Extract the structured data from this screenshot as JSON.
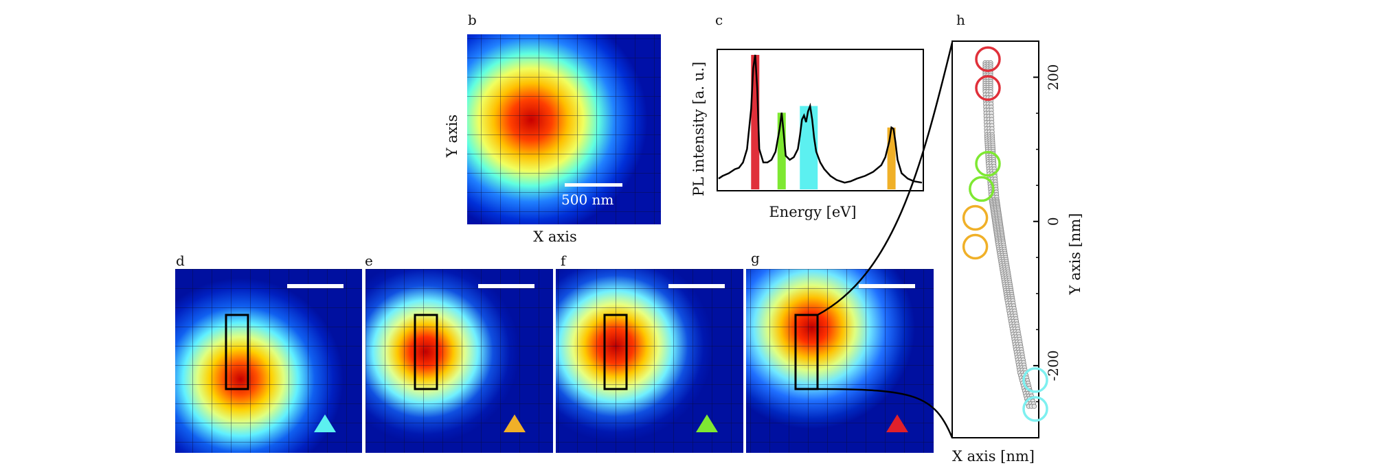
{
  "panels": {
    "b": {
      "letter": "b",
      "xlabel": "X axis",
      "ylabel": "Y axis",
      "scalebar_label": "500 nm"
    },
    "c": {
      "letter": "c",
      "xlabel": "Energy [eV]",
      "ylabel": "PL intensity [a. u.]",
      "highlight_colors": [
        "#e0303a",
        "#7ee832",
        "#5cf0f0",
        "#f0b028"
      ]
    },
    "d": {
      "letter": "d",
      "marker_color": "#5cf0f0"
    },
    "e": {
      "letter": "e",
      "marker_color": "#f0b028"
    },
    "f": {
      "letter": "f",
      "marker_color": "#7ee832"
    },
    "g": {
      "letter": "g",
      "marker_color": "#e0202a"
    },
    "h": {
      "letter": "h",
      "xlabel": "X axis [nm]",
      "ylabel": "Y axis [nm]",
      "y_ticks": [
        "200",
        "0",
        "-200"
      ],
      "circle_colors": [
        "#e0303a",
        "#7ee832",
        "#f0b028",
        "#7ef0f0"
      ]
    }
  },
  "chart_data": [
    {
      "type": "line",
      "panel": "c",
      "xlabel": "Energy [eV]",
      "ylabel": "PL intensity [a. u.]",
      "x": [
        0,
        0.02,
        0.05,
        0.08,
        0.1,
        0.12,
        0.14,
        0.16,
        0.17,
        0.18,
        0.19,
        0.2,
        0.22,
        0.24,
        0.26,
        0.28,
        0.3,
        0.31,
        0.32,
        0.33,
        0.35,
        0.37,
        0.39,
        0.4,
        0.41,
        0.42,
        0.43,
        0.44,
        0.45,
        0.46,
        0.47,
        0.48,
        0.5,
        0.52,
        0.55,
        0.58,
        0.62,
        0.65,
        0.68,
        0.72,
        0.76,
        0.8,
        0.82,
        0.84,
        0.85,
        0.86,
        0.87,
        0.88,
        0.9,
        0.93,
        0.96,
        1.0
      ],
      "y": [
        0.08,
        0.1,
        0.12,
        0.15,
        0.16,
        0.2,
        0.3,
        0.6,
        0.9,
        1.0,
        0.75,
        0.3,
        0.2,
        0.2,
        0.22,
        0.28,
        0.45,
        0.57,
        0.42,
        0.25,
        0.22,
        0.24,
        0.3,
        0.4,
        0.52,
        0.55,
        0.5,
        0.58,
        0.62,
        0.52,
        0.38,
        0.28,
        0.2,
        0.15,
        0.1,
        0.07,
        0.05,
        0.06,
        0.08,
        0.1,
        0.13,
        0.18,
        0.24,
        0.36,
        0.46,
        0.45,
        0.35,
        0.22,
        0.12,
        0.08,
        0.06,
        0.05
      ],
      "highlighted_peaks": [
        {
          "x_center": 0.18,
          "color": "#e0303a"
        },
        {
          "x_center": 0.31,
          "color": "#7ee832"
        },
        {
          "x_center": 0.44,
          "color": "#5cf0f0"
        },
        {
          "x_center": 0.85,
          "color": "#f0b028"
        }
      ]
    },
    {
      "type": "scatter",
      "panel": "h",
      "xlabel": "X axis [nm]",
      "ylabel": "Y axis [nm]",
      "yticks": [
        200,
        0,
        -200
      ],
      "ylim": [
        -300,
        250
      ],
      "path": {
        "x": [
          0,
          0,
          1,
          2,
          4,
          6,
          8,
          11,
          14,
          18,
          22,
          28
        ],
        "y": [
          220,
          180,
          120,
          80,
          30,
          0,
          -30,
          -70,
          -110,
          -160,
          -210,
          -260
        ]
      },
      "circles": [
        {
          "x": 0,
          "y": 225,
          "color": "#e0303a"
        },
        {
          "x": 0,
          "y": 185,
          "color": "#e0303a"
        },
        {
          "x": 0,
          "y": 80,
          "color": "#7ee832"
        },
        {
          "x": -4,
          "y": 45,
          "color": "#7ee832"
        },
        {
          "x": -8,
          "y": 5,
          "color": "#f0b028"
        },
        {
          "x": -8,
          "y": -35,
          "color": "#f0b028"
        },
        {
          "x": 30,
          "y": -220,
          "color": "#7ef0f0"
        },
        {
          "x": 30,
          "y": -260,
          "color": "#7ef0f0"
        }
      ]
    }
  ]
}
